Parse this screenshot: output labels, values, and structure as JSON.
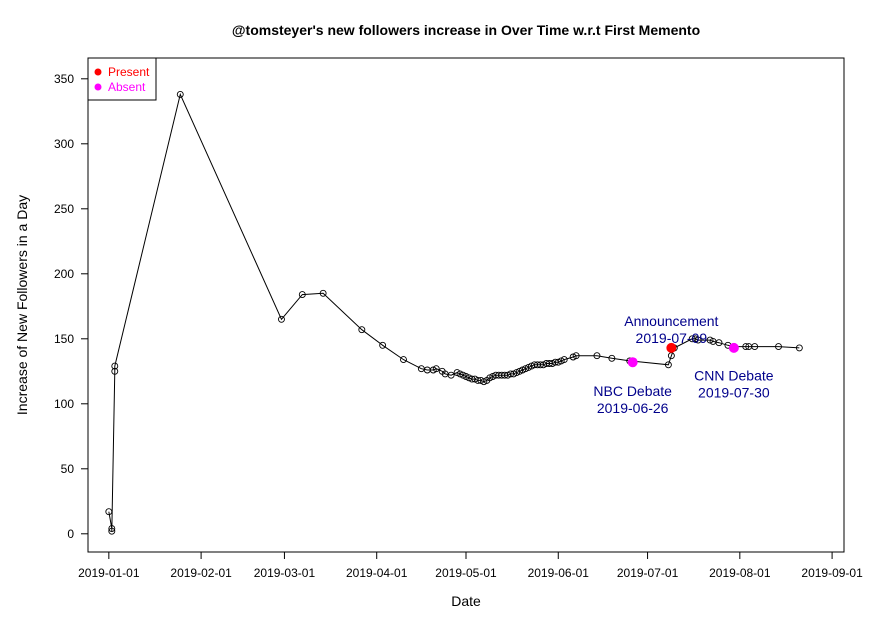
{
  "chart_data": {
    "type": "line",
    "title": "@tomsteyer's new followers increase in Over Time w.r.t First Memento",
    "xlabel": "Date",
    "ylabel": "Increase of New Followers in a Day",
    "xlim": [
      "2018-12-25",
      "2019-09-05"
    ],
    "ylim": [
      -14,
      366
    ],
    "x_ticks": [
      "2019-01-01",
      "2019-02-01",
      "2019-03-01",
      "2019-04-01",
      "2019-05-01",
      "2019-06-01",
      "2019-07-01",
      "2019-08-01",
      "2019-09-01"
    ],
    "y_ticks": [
      0,
      50,
      100,
      150,
      200,
      250,
      300,
      350
    ],
    "grid": false,
    "legend": {
      "position": "top-left",
      "entries": [
        {
          "label": "Present",
          "color": "#ff0000"
        },
        {
          "label": "Absent",
          "color": "#ff00ff"
        }
      ]
    },
    "series": [
      {
        "points": [
          {
            "x": "2019-01-01",
            "y": 17
          },
          {
            "x": "2019-01-02",
            "y": 4
          },
          {
            "x": "2019-01-02",
            "y": 2
          },
          {
            "x": "2019-01-03",
            "y": 125
          },
          {
            "x": "2019-01-03",
            "y": 129
          },
          {
            "x": "2019-01-25",
            "y": 338
          },
          {
            "x": "2019-02-28",
            "y": 165
          },
          {
            "x": "2019-03-07",
            "y": 184
          },
          {
            "x": "2019-03-14",
            "y": 185
          },
          {
            "x": "2019-03-27",
            "y": 157
          },
          {
            "x": "2019-04-03",
            "y": 145
          },
          {
            "x": "2019-04-10",
            "y": 134
          },
          {
            "x": "2019-04-16",
            "y": 127
          },
          {
            "x": "2019-04-18",
            "y": 126
          },
          {
            "x": "2019-04-20",
            "y": 126
          },
          {
            "x": "2019-04-21",
            "y": 127
          },
          {
            "x": "2019-04-23",
            "y": 125
          },
          {
            "x": "2019-04-24",
            "y": 123
          },
          {
            "x": "2019-04-26",
            "y": 122
          },
          {
            "x": "2019-04-28",
            "y": 124
          },
          {
            "x": "2019-04-29",
            "y": 123
          },
          {
            "x": "2019-04-30",
            "y": 122
          },
          {
            "x": "2019-05-01",
            "y": 121
          },
          {
            "x": "2019-05-02",
            "y": 120
          },
          {
            "x": "2019-05-03",
            "y": 119
          },
          {
            "x": "2019-05-04",
            "y": 119
          },
          {
            "x": "2019-05-05",
            "y": 118
          },
          {
            "x": "2019-05-06",
            "y": 118
          },
          {
            "x": "2019-05-07",
            "y": 117
          },
          {
            "x": "2019-05-08",
            "y": 118
          },
          {
            "x": "2019-05-09",
            "y": 120
          },
          {
            "x": "2019-05-10",
            "y": 121
          },
          {
            "x": "2019-05-11",
            "y": 122
          },
          {
            "x": "2019-05-12",
            "y": 122
          },
          {
            "x": "2019-05-13",
            "y": 122
          },
          {
            "x": "2019-05-14",
            "y": 122
          },
          {
            "x": "2019-05-15",
            "y": 122
          },
          {
            "x": "2019-05-16",
            "y": 123
          },
          {
            "x": "2019-05-17",
            "y": 123
          },
          {
            "x": "2019-05-18",
            "y": 124
          },
          {
            "x": "2019-05-19",
            "y": 125
          },
          {
            "x": "2019-05-20",
            "y": 126
          },
          {
            "x": "2019-05-21",
            "y": 127
          },
          {
            "x": "2019-05-22",
            "y": 128
          },
          {
            "x": "2019-05-23",
            "y": 129
          },
          {
            "x": "2019-05-24",
            "y": 130
          },
          {
            "x": "2019-05-25",
            "y": 130
          },
          {
            "x": "2019-05-26",
            "y": 130
          },
          {
            "x": "2019-05-27",
            "y": 130
          },
          {
            "x": "2019-05-28",
            "y": 131
          },
          {
            "x": "2019-05-29",
            "y": 131
          },
          {
            "x": "2019-05-30",
            "y": 131
          },
          {
            "x": "2019-05-31",
            "y": 132
          },
          {
            "x": "2019-06-01",
            "y": 132
          },
          {
            "x": "2019-06-02",
            "y": 133
          },
          {
            "x": "2019-06-03",
            "y": 134
          },
          {
            "x": "2019-06-06",
            "y": 136
          },
          {
            "x": "2019-06-07",
            "y": 137
          },
          {
            "x": "2019-06-14",
            "y": 137
          },
          {
            "x": "2019-06-19",
            "y": 135
          },
          {
            "x": "2019-06-25",
            "y": 133
          },
          {
            "x": "2019-07-08",
            "y": 130
          },
          {
            "x": "2019-07-09",
            "y": 137
          },
          {
            "x": "2019-07-10",
            "y": 143
          },
          {
            "x": "2019-07-16",
            "y": 150
          },
          {
            "x": "2019-07-17",
            "y": 150
          },
          {
            "x": "2019-07-18",
            "y": 149
          },
          {
            "x": "2019-07-22",
            "y": 149
          },
          {
            "x": "2019-07-23",
            "y": 148
          },
          {
            "x": "2019-07-25",
            "y": 147
          },
          {
            "x": "2019-07-28",
            "y": 145
          },
          {
            "x": "2019-07-30",
            "y": 144
          },
          {
            "x": "2019-08-03",
            "y": 144
          },
          {
            "x": "2019-08-04",
            "y": 144
          },
          {
            "x": "2019-08-06",
            "y": 144
          },
          {
            "x": "2019-08-14",
            "y": 144
          },
          {
            "x": "2019-08-21",
            "y": 143
          }
        ]
      }
    ],
    "highlights": [
      {
        "x": "2019-06-26",
        "y": 132,
        "status": "Absent"
      },
      {
        "x": "2019-07-09",
        "y": 143,
        "status": "Present"
      },
      {
        "x": "2019-07-30",
        "y": 143,
        "status": "Absent"
      }
    ],
    "annotations": [
      {
        "lines": [
          "Announcement",
          "2019-07-09"
        ],
        "x": "2019-07-09",
        "y": 160
      },
      {
        "lines": [
          "NBC Debate",
          "2019-06-26"
        ],
        "x": "2019-06-26",
        "y": 106
      },
      {
        "lines": [
          "CNN Debate",
          "2019-07-30"
        ],
        "x": "2019-07-30",
        "y": 118
      }
    ],
    "colors": {
      "line": "#000000",
      "annotation": "#00008b"
    }
  }
}
